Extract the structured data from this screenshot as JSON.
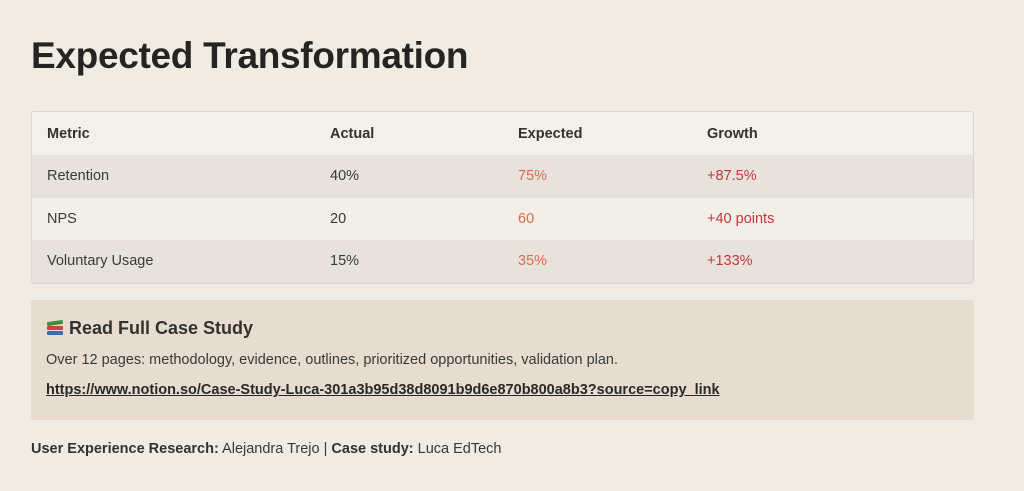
{
  "title": "Expected Transformation",
  "table": {
    "headers": [
      "Metric",
      "Actual",
      "Expected",
      "Growth"
    ],
    "rows": [
      {
        "metric": "Retention",
        "actual": "40%",
        "expected": "75%",
        "growth": "+87.5%"
      },
      {
        "metric": "NPS",
        "actual": "20",
        "expected": "60",
        "growth": "+40 points"
      },
      {
        "metric": "Voluntary Usage",
        "actual": "15%",
        "expected": "35%",
        "growth": "+133%"
      }
    ]
  },
  "callout": {
    "icon": "books-icon",
    "title": "Read Full Case Study",
    "description": "Over 12 pages: methodology, evidence, outlines, prioritized opportunities, validation plan.",
    "link": "https://www.notion.so/Case-Study-Luca-301a3b95d38d8091b9d6e870b800a8b3?source=copy_link"
  },
  "footer": {
    "research_label": "User Experience Research:",
    "research_value": "Alejandra Trejo",
    "separator": "|",
    "case_label": "Case study:",
    "case_value": "Luca EdTech"
  },
  "colors": {
    "background": "#f0ece4",
    "expected": "#e06a4a",
    "growth": "#c9343c",
    "callout_bg": "#e6ddd0"
  }
}
